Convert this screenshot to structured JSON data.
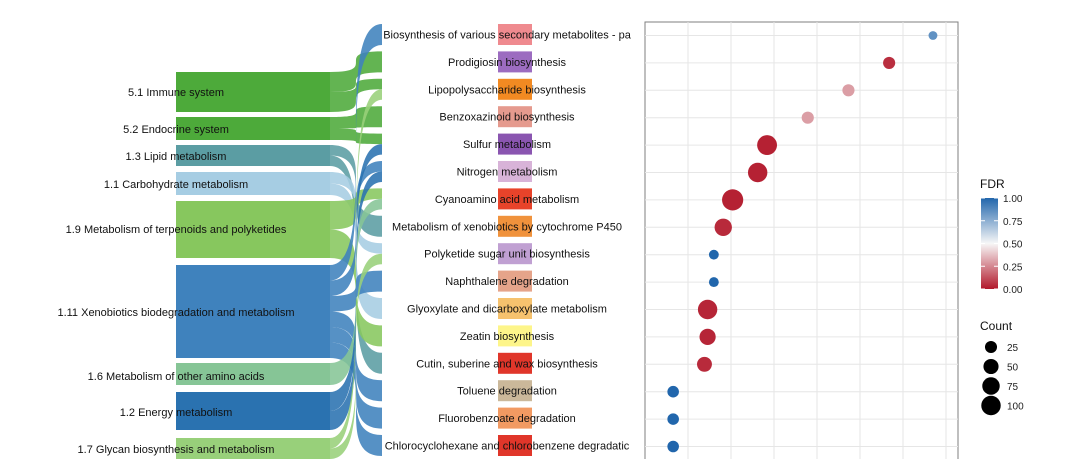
{
  "chart_data": {
    "type": "scatter",
    "subtype": "sankey-with-dot-plot",
    "sankey": {
      "sources": [
        {
          "label": "5.1 Immune system",
          "color": "#4daa3a"
        },
        {
          "label": "5.2 Endocrine system",
          "color": "#4daa3a"
        },
        {
          "label": "1.3 Lipid metabolism",
          "color": "#5b9da3"
        },
        {
          "label": "1.1 Carbohydrate metabolism",
          "color": "#a6cde3"
        },
        {
          "label": "1.9 Metabolism of terpenoids and polyketides",
          "color": "#87c75e"
        },
        {
          "label": "1.11 Xenobiotics biodegradation and metabolism",
          "color": "#3f82bd"
        },
        {
          "label": "1.6 Metabolism of other amino acids",
          "color": "#86c596"
        },
        {
          "label": "1.2 Energy metabolism",
          "color": "#2a72b0"
        },
        {
          "label": "1.7 Glycan biosynthesis and metabolism",
          "color": "#98d07a"
        }
      ],
      "targets": [
        {
          "label": "Biosynthesis of various secondary metabolites - pa",
          "color": "#ef8a8f"
        },
        {
          "label": "Prodigiosin biosynthesis",
          "color": "#9c6cc0"
        },
        {
          "label": "Lipopolysaccharide biosynthesis",
          "color": "#f28a22"
        },
        {
          "label": "Benzoxazinoid biosynthesis",
          "color": "#e59a8e"
        },
        {
          "label": "Sulfur metabolism",
          "color": "#8a55b0"
        },
        {
          "label": "Nitrogen metabolism",
          "color": "#d8b3d8"
        },
        {
          "label": "Cyanoamino acid metabolism",
          "color": "#e8432a"
        },
        {
          "label": "Metabolism of xenobiotics by cytochrome P450",
          "color": "#f0923c"
        },
        {
          "label": "Polyketide sugar unit biosynthesis",
          "color": "#c0a0d2"
        },
        {
          "label": "Naphthalene degradation",
          "color": "#e5a48a"
        },
        {
          "label": "Glyoxylate and dicarboxylate metabolism",
          "color": "#f6c26e"
        },
        {
          "label": "Zeatin biosynthesis",
          "color": "#fdf58a"
        },
        {
          "label": "Cutin, suberine and wax biosynthesis",
          "color": "#e0362a"
        },
        {
          "label": "Toluene degradation",
          "color": "#cbb89a"
        },
        {
          "label": "Fluorobenzoate degradation",
          "color": "#f29a62"
        },
        {
          "label": "Chlorocyclohexane and chlorobenzene degradatic",
          "color": "#e0362a"
        }
      ],
      "links": [
        {
          "source": 0,
          "target": 1
        },
        {
          "source": 0,
          "target": 2
        },
        {
          "source": 1,
          "target": 3
        },
        {
          "source": 1,
          "target": 4
        },
        {
          "source": 2,
          "target": 7
        },
        {
          "source": 2,
          "target": 12
        },
        {
          "source": 3,
          "target": 8
        },
        {
          "source": 3,
          "target": 10
        },
        {
          "source": 4,
          "target": 6
        },
        {
          "source": 4,
          "target": 11
        },
        {
          "source": 5,
          "target": 0
        },
        {
          "source": 5,
          "target": 5
        },
        {
          "source": 5,
          "target": 9
        },
        {
          "source": 5,
          "target": 13
        },
        {
          "source": 5,
          "target": 14
        },
        {
          "source": 5,
          "target": 15
        },
        {
          "source": 6,
          "target": 6
        },
        {
          "source": 7,
          "target": 4
        },
        {
          "source": 7,
          "target": 5
        },
        {
          "source": 8,
          "target": 2
        },
        {
          "source": 8,
          "target": 8
        }
      ]
    },
    "dots": {
      "points": [
        {
          "pathway": "Biosynthesis of various secondary metabolites - pa",
          "x": 0.92,
          "count": 5,
          "fdr": 0.85
        },
        {
          "pathway": "Prodigiosin biosynthesis",
          "x": 0.78,
          "count": 18,
          "fdr": 0.05
        },
        {
          "pathway": "Lipopolysaccharide biosynthesis",
          "x": 0.65,
          "count": 18,
          "fdr": 0.3
        },
        {
          "pathway": "Benzoxazinoid biosynthesis",
          "x": 0.52,
          "count": 18,
          "fdr": 0.3
        },
        {
          "pathway": "Sulfur metabolism",
          "x": 0.39,
          "count": 80,
          "fdr": 0.02
        },
        {
          "pathway": "Nitrogen metabolism",
          "x": 0.36,
          "count": 75,
          "fdr": 0.02
        },
        {
          "pathway": "Cyanoamino acid metabolism",
          "x": 0.28,
          "count": 95,
          "fdr": 0.02
        },
        {
          "pathway": "Metabolism of xenobiotics by cytochrome P450",
          "x": 0.25,
          "count": 55,
          "fdr": 0.04
        },
        {
          "pathway": "Polyketide sugar unit biosynthesis",
          "x": 0.22,
          "count": 8,
          "fdr": 1.0
        },
        {
          "pathway": "Naphthalene degradation",
          "x": 0.22,
          "count": 8,
          "fdr": 1.0
        },
        {
          "pathway": "Glyoxylate and dicarboxylate metabolism",
          "x": 0.2,
          "count": 75,
          "fdr": 0.03
        },
        {
          "pathway": "Zeatin biosynthesis",
          "x": 0.2,
          "count": 45,
          "fdr": 0.03
        },
        {
          "pathway": "Cutin, suberine and wax biosynthesis",
          "x": 0.19,
          "count": 35,
          "fdr": 0.04
        },
        {
          "pathway": "Toluene degradation",
          "x": 0.09,
          "count": 15,
          "fdr": 1.0
        },
        {
          "pathway": "Fluorobenzoate degradation",
          "x": 0.09,
          "count": 15,
          "fdr": 1.0
        },
        {
          "pathway": "Chlorocyclohexane and chlorobenzene degradatic",
          "x": 0.09,
          "count": 15,
          "fdr": 1.0
        }
      ],
      "xlim": [
        0,
        1
      ],
      "grid": true
    },
    "legend": {
      "fdr": {
        "title": "FDR",
        "ticks": [
          "1.00",
          "0.75",
          "0.50",
          "0.25",
          "0.00"
        ],
        "colors": {
          "low": "#b2182b",
          "mid": "#f7f7f7",
          "high": "#2166ac"
        }
      },
      "count": {
        "title": "Count",
        "items": [
          {
            "label": "25",
            "value": 25
          },
          {
            "label": "50",
            "value": 50
          },
          {
            "label": "75",
            "value": 75
          },
          {
            "label": "100",
            "value": 100
          }
        ]
      },
      "placement": "right"
    }
  }
}
